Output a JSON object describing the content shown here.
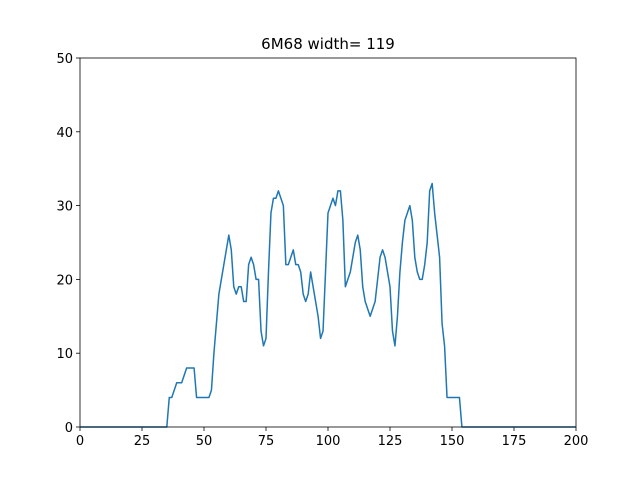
{
  "chart_data": {
    "type": "line",
    "title": "6M68 width= 119",
    "x": [
      0,
      35,
      36,
      37,
      38,
      39,
      40,
      41,
      42,
      43,
      44,
      45,
      46,
      47,
      48,
      49,
      50,
      51,
      52,
      53,
      54,
      55,
      56,
      57,
      58,
      59,
      60,
      61,
      62,
      63,
      64,
      65,
      66,
      67,
      68,
      69,
      70,
      71,
      72,
      73,
      74,
      75,
      76,
      77,
      78,
      79,
      80,
      81,
      82,
      83,
      84,
      85,
      86,
      87,
      88,
      89,
      90,
      91,
      92,
      93,
      94,
      95,
      96,
      97,
      98,
      99,
      100,
      101,
      102,
      103,
      104,
      105,
      106,
      107,
      108,
      109,
      110,
      111,
      112,
      113,
      114,
      115,
      116,
      117,
      118,
      119,
      120,
      121,
      122,
      123,
      124,
      125,
      126,
      127,
      128,
      129,
      130,
      131,
      132,
      133,
      134,
      135,
      136,
      137,
      138,
      139,
      140,
      141,
      142,
      143,
      144,
      145,
      146,
      147,
      148,
      149,
      150,
      151,
      152,
      153,
      154,
      200
    ],
    "series": [
      {
        "color": "#1f77b4",
        "values": [
          0,
          0,
          4,
          4,
          5,
          6,
          6,
          6,
          7,
          8,
          8,
          8,
          8,
          4,
          4,
          4,
          4,
          4,
          4,
          5,
          10,
          14,
          18,
          20,
          22,
          24,
          26,
          24,
          19,
          18,
          19,
          19,
          17,
          17,
          22,
          23,
          22,
          20,
          20,
          13,
          11,
          12,
          21,
          29,
          31,
          31,
          32,
          31,
          30,
          22,
          22,
          23,
          24,
          22,
          22,
          21,
          18,
          17,
          18,
          21,
          19,
          17,
          15,
          12,
          13,
          21,
          29,
          30,
          31,
          30,
          32,
          32,
          28,
          19,
          20,
          21,
          23,
          25,
          26,
          24,
          19,
          17,
          16,
          15,
          16,
          17,
          20,
          23,
          24,
          23,
          21,
          19,
          13,
          11,
          15,
          21,
          25,
          28,
          29,
          30,
          28,
          23,
          21,
          20,
          20,
          22,
          25,
          32,
          33,
          29,
          26,
          23,
          14,
          11,
          4,
          4,
          4,
          4,
          4,
          4,
          0,
          0
        ]
      }
    ],
    "xlim": [
      0,
      200
    ],
    "xticks": [
      0,
      25,
      50,
      75,
      100,
      125,
      150,
      175,
      200
    ],
    "ylim": [
      0,
      50
    ],
    "yticks": [
      0,
      10,
      20,
      30,
      40,
      50
    ]
  }
}
